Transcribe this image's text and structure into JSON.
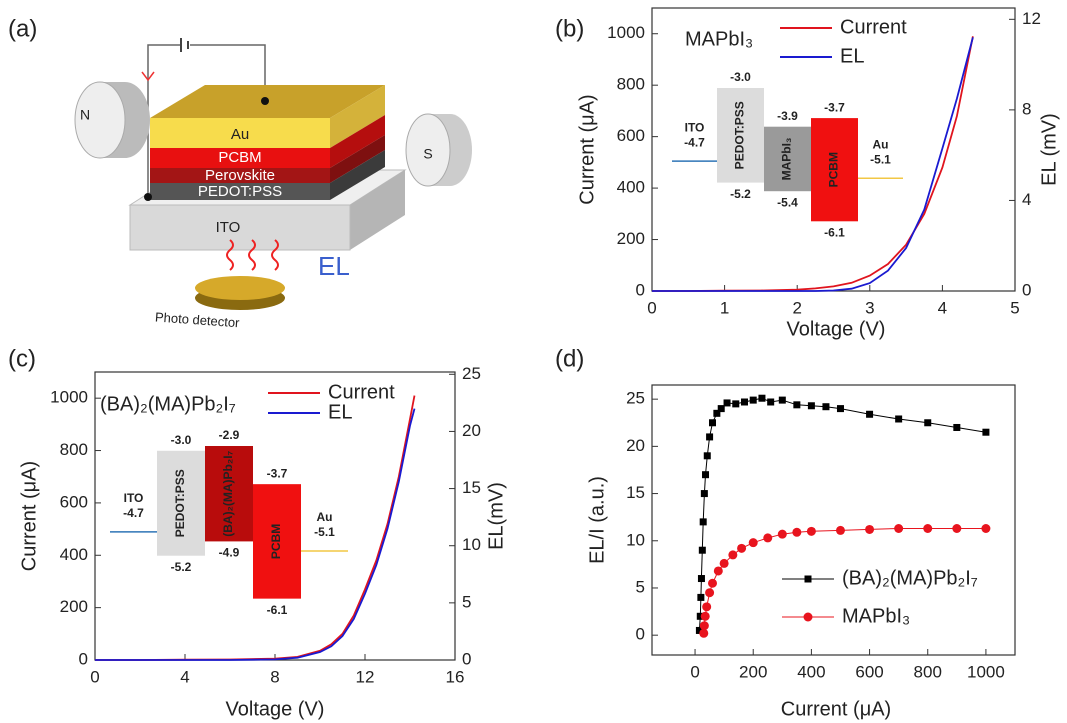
{
  "diagram": {
    "label": "(a)",
    "magnets": [
      "N",
      "S"
    ],
    "layers": [
      "Au",
      "PCBM",
      "Perovskite",
      "PEDOT:PSS",
      "ITO"
    ],
    "emission": "EL",
    "detector": "Photo detector"
  },
  "chart_data": [
    {
      "type": "line",
      "panel_label": "(b)",
      "annotation": "MAPbI₃",
      "x_label": "Voltage (V)",
      "y_label": "Current (μA)",
      "y2_label": "EL (mV)",
      "x": [
        0,
        0.5,
        1,
        1.5,
        2,
        2.25,
        2.5,
        2.75,
        3,
        3.25,
        3.5,
        3.75,
        4,
        4.2,
        4.42
      ],
      "series": [
        {
          "name": "Current",
          "color": "#e0141e",
          "values": [
            0,
            0,
            1,
            2,
            5,
            10,
            18,
            32,
            60,
            105,
            180,
            300,
            480,
            680,
            990
          ]
        },
        {
          "name": "EL",
          "color": "#1a1ad0",
          "axis": "y2",
          "values": [
            0,
            0,
            0,
            0,
            0,
            0,
            0.02,
            0.1,
            0.35,
            0.9,
            1.9,
            3.6,
            6.3,
            8.5,
            11.2
          ]
        }
      ],
      "xlim": [
        0,
        5
      ],
      "xticks": [
        0,
        1,
        2,
        3,
        4,
        5
      ],
      "ylim": [
        0,
        1100
      ],
      "yticks": [
        0,
        200,
        400,
        600,
        800,
        1000
      ],
      "y2lim": [
        0,
        12.5
      ],
      "y2ticks": [
        0,
        4,
        8,
        12
      ],
      "legend": "upper right",
      "inset": {
        "left": {
          "name": "ITO",
          "color": "#2e75b6",
          "level": {
            "value": -4.7,
            "label": "-4.7"
          }
        },
        "layers": [
          {
            "name": "PEDOT:PSS",
            "color": "#dcdcdc",
            "top": {
              "value": -3.0,
              "label": "-3.0"
            },
            "bottom": {
              "value": -5.2,
              "label": "-5.2"
            }
          },
          {
            "name": "MAPbI₃",
            "color": "#9a9a9a",
            "top": {
              "value": -3.9,
              "label": "-3.9"
            },
            "bottom": {
              "value": -5.4,
              "label": "-5.4"
            }
          },
          {
            "name": "PCBM",
            "color": "#f01010",
            "top": {
              "value": -3.7,
              "label": "-3.7"
            },
            "bottom": {
              "value": -6.1,
              "label": "-6.1"
            }
          }
        ],
        "right": {
          "name": "Au",
          "color": "#f2c744",
          "level": {
            "value": -5.1,
            "label": "-5.1"
          }
        }
      }
    },
    {
      "type": "line",
      "panel_label": "(c)",
      "annotation": "(BA)₂(MA)Pb₂I₇",
      "x_label": "Voltage (V)",
      "y_label": "Current (μA)",
      "y2_label": "EL(mV)",
      "x": [
        0,
        2,
        4,
        6,
        8,
        9,
        10,
        10.5,
        11,
        11.5,
        12,
        12.5,
        13,
        13.5,
        14,
        14.2
      ],
      "series": [
        {
          "name": "Current",
          "color": "#e0141e",
          "values": [
            0,
            0,
            1,
            2,
            5,
            12,
            35,
            60,
            100,
            170,
            270,
            380,
            520,
            700,
            920,
            1010
          ]
        },
        {
          "name": "EL",
          "color": "#1a1ad0",
          "axis": "y2",
          "values": [
            0,
            0,
            0,
            0,
            0.05,
            0.2,
            0.7,
            1.2,
            2.1,
            3.6,
            5.8,
            8.3,
            11.5,
            15.6,
            20.5,
            22
          ]
        }
      ],
      "xlim": [
        0,
        16
      ],
      "xticks": [
        0,
        4,
        8,
        12,
        16
      ],
      "ylim": [
        0,
        1100
      ],
      "yticks": [
        0,
        200,
        400,
        600,
        800,
        1000
      ],
      "y2lim": [
        0,
        25.2
      ],
      "y2ticks": [
        0,
        5,
        10,
        15,
        20,
        25
      ],
      "legend": "upper right",
      "inset": {
        "left": {
          "name": "ITO",
          "color": "#2e75b6",
          "level": {
            "value": -4.7,
            "label": "-4.7"
          }
        },
        "layers": [
          {
            "name": "PEDOT:PSS",
            "color": "#dcdcdc",
            "top": {
              "value": -3.0,
              "label": "-3.0"
            },
            "bottom": {
              "value": -5.2,
              "label": "-5.2"
            }
          },
          {
            "name": "(BA)₂(MA)Pb₂I₇",
            "color": "#b80c0c",
            "top": {
              "value": -2.9,
              "label": "-2.9"
            },
            "bottom": {
              "value": -4.9,
              "label": "-4.9"
            }
          },
          {
            "name": "PCBM",
            "color": "#f01010",
            "top": {
              "value": -3.7,
              "label": "-3.7"
            },
            "bottom": {
              "value": -6.1,
              "label": "-6.1"
            }
          }
        ],
        "right": {
          "name": "Au",
          "color": "#f2c744",
          "level": {
            "value": -5.1,
            "label": "-5.1"
          }
        }
      }
    },
    {
      "type": "line",
      "panel_label": "(d)",
      "x_label": "Current (μA)",
      "y_label": "EL/I (a.u.)",
      "series": [
        {
          "name": "(BA)₂(MA)Pb₂I₇",
          "color": "#000000",
          "marker": "square",
          "x": [
            15,
            18,
            20,
            22,
            25,
            28,
            32,
            36,
            42,
            50,
            60,
            75,
            90,
            110,
            140,
            170,
            200,
            230,
            260,
            300,
            350,
            400,
            450,
            500,
            600,
            700,
            800,
            900,
            1000
          ],
          "values": [
            0.5,
            2,
            4,
            6,
            9,
            12,
            15,
            17,
            19,
            21,
            22.5,
            23.5,
            24,
            24.6,
            24.5,
            24.7,
            24.9,
            25.1,
            24.7,
            24.9,
            24.4,
            24.3,
            24.2,
            24,
            23.4,
            22.9,
            22.5,
            22,
            21.5
          ]
        },
        {
          "name": "MAPbI₃",
          "color": "#e8141e",
          "marker": "circle",
          "x": [
            30,
            32,
            35,
            40,
            50,
            60,
            80,
            100,
            130,
            160,
            200,
            250,
            300,
            350,
            400,
            500,
            600,
            700,
            800,
            900,
            1000
          ],
          "values": [
            0.2,
            1,
            2,
            3,
            4.5,
            5.5,
            6.8,
            7.6,
            8.5,
            9.2,
            9.8,
            10.3,
            10.7,
            10.9,
            11,
            11.1,
            11.2,
            11.3,
            11.3,
            11.3,
            11.3
          ]
        }
      ],
      "xlim": [
        -148,
        1100
      ],
      "xticks": [
        0,
        200,
        400,
        600,
        800,
        1000
      ],
      "ylim": [
        -2.1,
        26.5
      ],
      "yticks": [
        0,
        5,
        10,
        15,
        20,
        25
      ],
      "legend": "lower right"
    }
  ]
}
